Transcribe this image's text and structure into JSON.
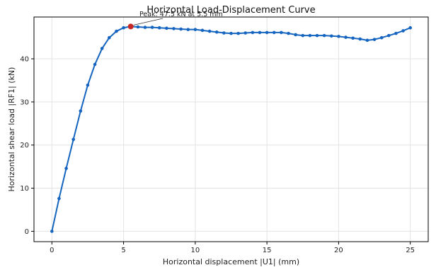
{
  "chart_data": {
    "type": "line",
    "title": "Horizontal Load-Displacement Curve",
    "xlabel": "Horizontal displacement |U1| (mm)",
    "ylabel": "Horizontal shear load |RF1| (kN)",
    "xlim": [
      -1.25,
      26.25
    ],
    "ylim": [
      -2.4,
      49.7
    ],
    "xticks": [
      0,
      5,
      10,
      15,
      20,
      25
    ],
    "yticks": [
      0,
      10,
      20,
      30,
      40
    ],
    "grid": true,
    "line_color": "#1565c0",
    "peak_color": "#c62828",
    "series": [
      {
        "x": [
          0,
          0.5,
          1,
          1.5,
          2,
          2.5,
          3,
          3.5,
          4,
          4.5,
          5,
          5.5,
          6,
          6.5,
          7,
          7.5,
          8,
          8.5,
          9,
          9.5,
          10,
          10.5,
          11,
          11.5,
          12,
          12.5,
          13,
          13.5,
          14,
          14.5,
          15,
          15.5,
          16,
          16.5,
          17,
          17.5,
          18,
          18.5,
          19,
          19.5,
          20,
          20.5,
          21,
          21.5,
          22,
          22.5,
          23,
          23.5,
          24,
          24.5,
          25
        ],
        "y": [
          0,
          7.6,
          14.6,
          21.3,
          27.9,
          33.9,
          38.7,
          42.4,
          44.9,
          46.4,
          47.2,
          47.5,
          47.4,
          47.3,
          47.3,
          47.2,
          47.1,
          47.0,
          46.9,
          46.8,
          46.8,
          46.6,
          46.4,
          46.2,
          46.0,
          45.9,
          45.9,
          46.0,
          46.1,
          46.1,
          46.1,
          46.1,
          46.1,
          45.9,
          45.6,
          45.4,
          45.4,
          45.4,
          45.4,
          45.3,
          45.2,
          45.0,
          44.8,
          44.6,
          44.3,
          44.5,
          44.9,
          45.4,
          45.9,
          46.5,
          47.2
        ]
      }
    ],
    "peak": {
      "x": 5.5,
      "y": 47.5
    },
    "annotation": "Peak: 47.5 kN at 5.5 mm"
  }
}
